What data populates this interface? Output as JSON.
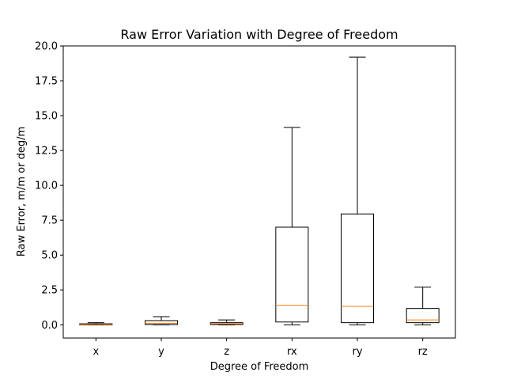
{
  "chart_data": {
    "type": "box",
    "title": "Raw Error Variation with Degree of Freedom",
    "xlabel": "Degree of Freedom",
    "ylabel": "Raw Error, m/m or deg/m",
    "ylim": [
      -0.95,
      20.0
    ],
    "yticks": [
      "0.0",
      "2.5",
      "5.0",
      "7.5",
      "10.0",
      "12.5",
      "15.0",
      "17.5",
      "20.0"
    ],
    "categories": [
      "x",
      "y",
      "z",
      "rx",
      "ry",
      "rz"
    ],
    "boxes": [
      {
        "label": "x",
        "whisker_low": 0.0,
        "q1": 0.0,
        "median": 0.03,
        "q3": 0.07,
        "whisker_high": 0.15
      },
      {
        "label": "y",
        "whisker_low": 0.0,
        "q1": 0.02,
        "median": 0.1,
        "q3": 0.3,
        "whisker_high": 0.58
      },
      {
        "label": "z",
        "whisker_low": 0.0,
        "q1": 0.02,
        "median": 0.07,
        "q3": 0.15,
        "whisker_high": 0.35
      },
      {
        "label": "rx",
        "whisker_low": 0.0,
        "q1": 0.2,
        "median": 1.4,
        "q3": 7.0,
        "whisker_high": 14.15
      },
      {
        "label": "ry",
        "whisker_low": 0.0,
        "q1": 0.15,
        "median": 1.32,
        "q3": 7.95,
        "whisker_high": 19.2
      },
      {
        "label": "rz",
        "whisker_low": 0.0,
        "q1": 0.15,
        "median": 0.35,
        "q3": 1.17,
        "whisker_high": 2.7
      }
    ],
    "grid": false,
    "colors": {
      "box": "#000000",
      "median": "#ff7f0e"
    }
  }
}
